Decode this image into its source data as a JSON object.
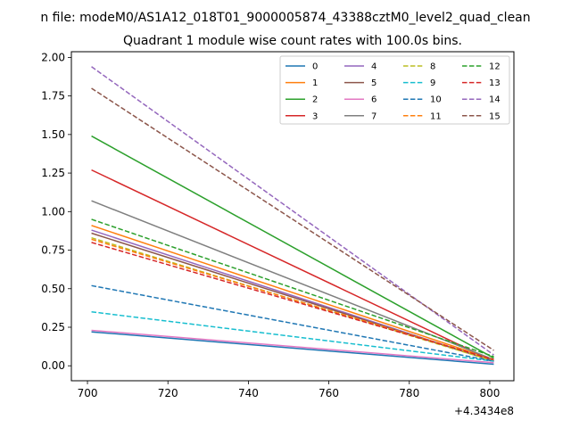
{
  "figure": {
    "suptitle": "n file: modeM0/AS1A12_018T01_9000005874_43388cztM0_level2_quad_clean",
    "background": "#ffffff"
  },
  "chart_data": {
    "type": "line",
    "title": "Quadrant 1 module wise count rates with 100.0s bins.",
    "xlabel": "",
    "ylabel": "",
    "x_offset_label": "+4.3434e8",
    "x_offset": 434340000,
    "x": [
      701,
      801
    ],
    "xlim": [
      696,
      806
    ],
    "ylim": [
      -0.097,
      2.037
    ],
    "xticks": [
      700,
      720,
      740,
      760,
      780,
      800
    ],
    "xtick_labels": [
      "700",
      "720",
      "740",
      "760",
      "780",
      "800"
    ],
    "yticks": [
      0.0,
      0.25,
      0.5,
      0.75,
      1.0,
      1.25,
      1.5,
      1.75,
      2.0
    ],
    "ytick_labels": [
      "0.00",
      "0.25",
      "0.50",
      "0.75",
      "1.00",
      "1.25",
      "1.50",
      "1.75",
      "2.00"
    ],
    "grid": false,
    "legend": {
      "placement": "top-right",
      "columns": 4
    },
    "series": [
      {
        "name": "0",
        "color": "#1f77b4",
        "dash": "solid",
        "values": [
          0.22,
          0.01
        ]
      },
      {
        "name": "1",
        "color": "#ff7f0e",
        "dash": "solid",
        "values": [
          0.91,
          0.04
        ]
      },
      {
        "name": "2",
        "color": "#2ca02c",
        "dash": "solid",
        "values": [
          1.49,
          0.05
        ]
      },
      {
        "name": "3",
        "color": "#d62728",
        "dash": "solid",
        "values": [
          1.27,
          0.03
        ]
      },
      {
        "name": "4",
        "color": "#9467bd",
        "dash": "solid",
        "values": [
          0.88,
          0.03
        ]
      },
      {
        "name": "5",
        "color": "#8c564b",
        "dash": "solid",
        "values": [
          0.86,
          0.03
        ]
      },
      {
        "name": "6",
        "color": "#e377c2",
        "dash": "solid",
        "values": [
          0.23,
          0.02
        ]
      },
      {
        "name": "7",
        "color": "#7f7f7f",
        "dash": "solid",
        "values": [
          1.07,
          0.04
        ]
      },
      {
        "name": "8",
        "color": "#bcbd22",
        "dash": "dashed",
        "values": [
          0.83,
          0.03
        ]
      },
      {
        "name": "9",
        "color": "#17becf",
        "dash": "dashed",
        "values": [
          0.35,
          0.03
        ]
      },
      {
        "name": "10",
        "color": "#1f77b4",
        "dash": "dashed",
        "values": [
          0.52,
          0.03
        ]
      },
      {
        "name": "11",
        "color": "#ff7f0e",
        "dash": "dashed",
        "values": [
          0.82,
          0.04
        ]
      },
      {
        "name": "12",
        "color": "#2ca02c",
        "dash": "dashed",
        "values": [
          0.95,
          0.06
        ]
      },
      {
        "name": "13",
        "color": "#d62728",
        "dash": "dashed",
        "values": [
          0.8,
          0.04
        ]
      },
      {
        "name": "14",
        "color": "#9467bd",
        "dash": "dashed",
        "values": [
          1.94,
          0.07
        ]
      },
      {
        "name": "15",
        "color": "#8c564b",
        "dash": "dashed",
        "values": [
          1.8,
          0.1
        ]
      }
    ]
  }
}
